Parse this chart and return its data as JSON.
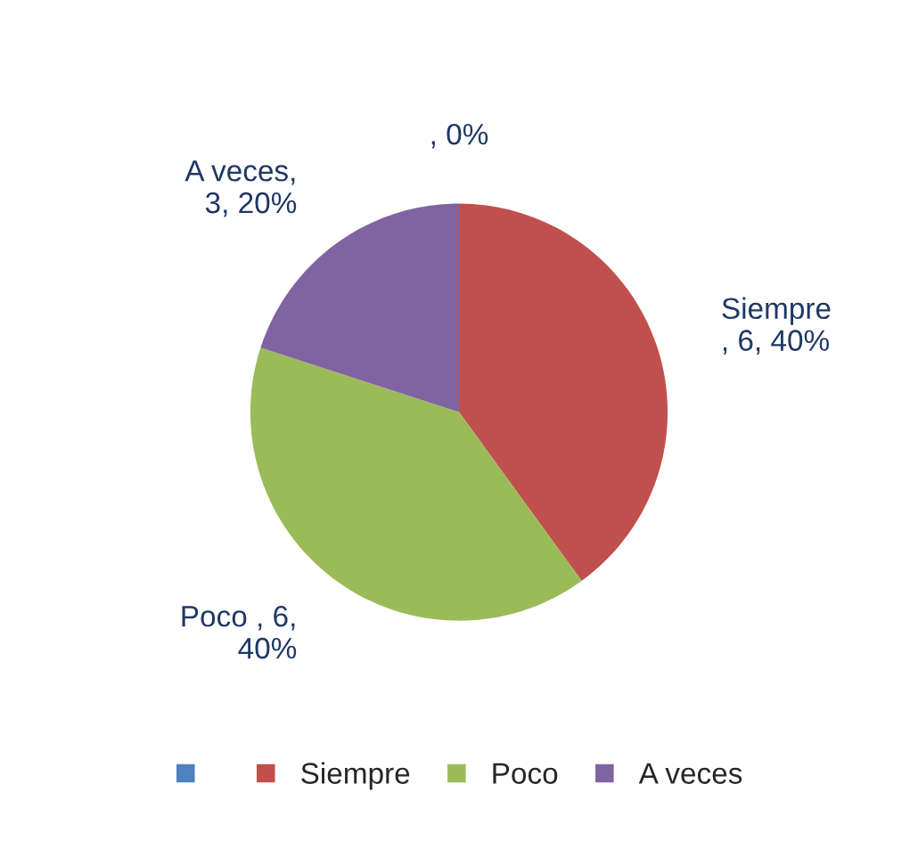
{
  "chart_data": {
    "type": "pie",
    "categories": [
      null,
      "Siempre",
      "Poco",
      "A veces"
    ],
    "values": [
      0,
      6,
      6,
      3
    ],
    "colors": [
      "#4f81bd",
      "#c0504d",
      "#9bbb59",
      "#8064a2"
    ],
    "value_labels": [
      ", 0%",
      "Siempre\n, 6, 40%",
      "Poco , 6,\n40%",
      "A veces,\n3, 20%"
    ],
    "legend": "bottom"
  }
}
